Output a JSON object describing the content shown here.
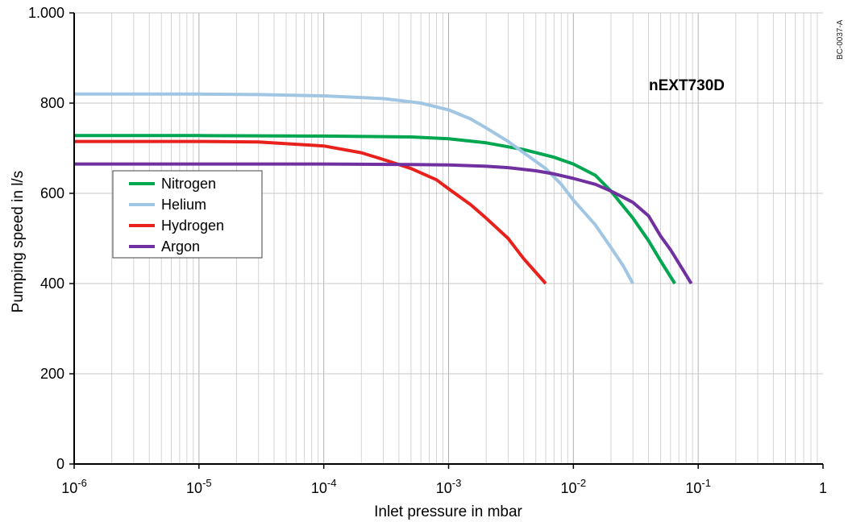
{
  "chart_data": {
    "type": "line",
    "title": "",
    "annotation": "nEXT730D",
    "doc_code": "BC-0037-A",
    "xlabel": "Inlet pressure in mbar",
    "ylabel": "Pumping speed in l/s",
    "x_scale": "log",
    "xlim": [
      1e-06,
      1
    ],
    "ylim": [
      0,
      1000
    ],
    "grid": true,
    "legend_position": "left-middle",
    "x_ticks": [
      {
        "base": "10",
        "exp": "-6",
        "value": 1e-06
      },
      {
        "base": "10",
        "exp": "-5",
        "value": 1e-05
      },
      {
        "base": "10",
        "exp": "-4",
        "value": 0.0001
      },
      {
        "base": "10",
        "exp": "-3",
        "value": 0.001
      },
      {
        "base": "10",
        "exp": "-2",
        "value": 0.01
      },
      {
        "base": "10",
        "exp": "-1",
        "value": 0.1
      },
      {
        "base": "1",
        "exp": "",
        "value": 1
      }
    ],
    "y_ticks": [
      {
        "label": "0",
        "value": 0
      },
      {
        "label": "200",
        "value": 200
      },
      {
        "label": "400",
        "value": 400
      },
      {
        "label": "600",
        "value": 600
      },
      {
        "label": "800",
        "value": 800
      },
      {
        "label": "1.000",
        "value": 1000
      }
    ],
    "series": [
      {
        "name": "Nitrogen",
        "color": "#00a650",
        "x": [
          1e-06,
          1e-05,
          0.0001,
          0.0005,
          0.001,
          0.002,
          0.004,
          0.007,
          0.01,
          0.015,
          0.02,
          0.03,
          0.04,
          0.05,
          0.065
        ],
        "y": [
          728,
          728,
          727,
          725,
          721,
          712,
          697,
          680,
          665,
          640,
          605,
          545,
          495,
          450,
          400
        ]
      },
      {
        "name": "Helium",
        "color": "#a0c6e4",
        "x": [
          1e-06,
          1e-05,
          3e-05,
          0.0001,
          0.0003,
          0.0006,
          0.001,
          0.0015,
          0.002,
          0.003,
          0.004,
          0.006,
          0.008,
          0.01,
          0.015,
          0.02,
          0.025,
          0.03
        ],
        "y": [
          820,
          820,
          819,
          816,
          810,
          800,
          785,
          765,
          745,
          715,
          690,
          655,
          620,
          585,
          530,
          480,
          440,
          400
        ]
      },
      {
        "name": "Hydrogen",
        "color": "#e8211d",
        "x": [
          1e-06,
          1e-05,
          3e-05,
          0.0001,
          0.0002,
          0.0003,
          0.0005,
          0.0008,
          0.001,
          0.0015,
          0.002,
          0.003,
          0.004,
          0.006
        ],
        "y": [
          715,
          715,
          714,
          705,
          690,
          675,
          655,
          630,
          610,
          575,
          545,
          500,
          455,
          400
        ]
      },
      {
        "name": "Argon",
        "color": "#7030a0",
        "x": [
          1e-06,
          1e-05,
          0.0001,
          0.0005,
          0.001,
          0.002,
          0.003,
          0.005,
          0.007,
          0.01,
          0.015,
          0.02,
          0.03,
          0.04,
          0.05,
          0.06,
          0.07,
          0.088
        ],
        "y": [
          665,
          665,
          665,
          664,
          663,
          660,
          657,
          650,
          643,
          633,
          620,
          605,
          580,
          550,
          505,
          475,
          445,
          400
        ]
      }
    ]
  }
}
